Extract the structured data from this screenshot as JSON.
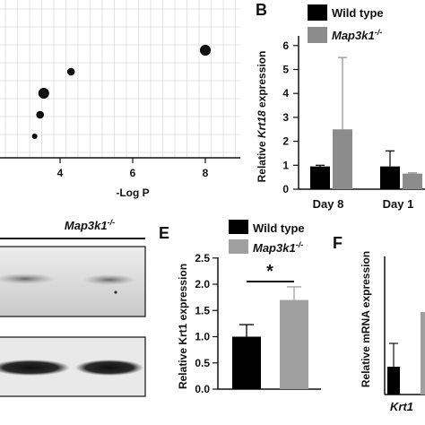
{
  "chart_data": [
    {
      "type": "scatter",
      "xlabel": "-Log P",
      "ylabel": "",
      "xlim": [
        0,
        10
      ],
      "grid": true,
      "tick_labels": [
        "4",
        "6",
        "8"
      ],
      "points": [
        {
          "x": 8.0,
          "y": 5,
          "size": 5
        },
        {
          "x": 4.3,
          "y": 4,
          "size": 3
        },
        {
          "x": 3.55,
          "y": 3,
          "size": 5
        },
        {
          "x": 3.45,
          "y": 2,
          "size": 3
        },
        {
          "x": 3.3,
          "y": 1,
          "size": 2
        }
      ]
    },
    {
      "type": "bar",
      "panel_label": "B",
      "categories": [
        "Day 8",
        "Day 1"
      ],
      "series": [
        {
          "name": "Wild type",
          "values": [
            0.95,
            0.95
          ],
          "errors": [
            0.05,
            0.65
          ],
          "color": "#000000"
        },
        {
          "name": "Map3k1-/-",
          "values": [
            2.5,
            0.65
          ],
          "errors": [
            3.0,
            0.03
          ],
          "color": "#8c8c8c"
        }
      ],
      "ylabel": "Relative Krt18 expression",
      "ylim": [
        0,
        6.6
      ],
      "yticks": [
        "0",
        "1",
        "2",
        "3",
        "4",
        "5",
        "6"
      ],
      "legend_placement": "top-left"
    },
    {
      "type": "bar",
      "panel_label": "E",
      "categories": [
        "Wild type",
        "Map3k1-/-"
      ],
      "values": [
        1.0,
        1.7
      ],
      "errors": [
        0.23,
        0.25
      ],
      "colors": [
        "#000000",
        "#a0a0a0"
      ],
      "ylabel": "Relative Krt1 expression",
      "ylim": [
        0,
        2.5
      ],
      "yticks": [
        "0.0",
        "0.5",
        "1.0",
        "1.5",
        "2.0",
        "2.5"
      ],
      "significance": "*",
      "legend_placement": "top"
    },
    {
      "type": "bar",
      "panel_label": "F",
      "categories": [
        "Krt1"
      ],
      "ylabel": "Relative mRNA expression",
      "xtick": "Krt1"
    }
  ],
  "blot": {
    "title": "Map3k1-/-"
  },
  "legend": {
    "wild_type": "Wild type",
    "map3k1_prefix": "Map3k1",
    "map3k1_sup": "-/-"
  }
}
